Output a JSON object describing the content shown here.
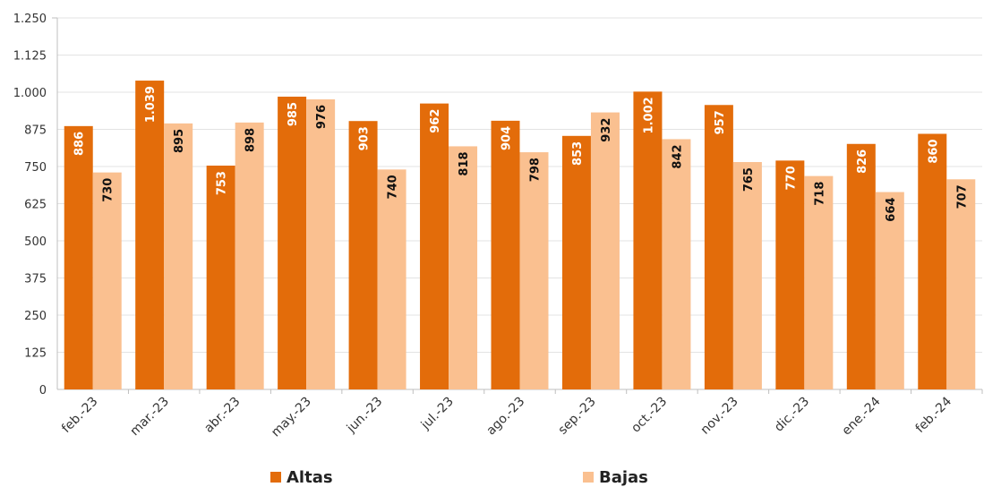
{
  "colors": {
    "altas": "#E36C0A",
    "bajas": "#FAC090"
  },
  "chart_data": {
    "type": "bar",
    "categories": [
      "feb.-23",
      "mar.-23",
      "abr.-23",
      "may.-23",
      "jun.-23",
      "jul.-23",
      "ago.-23",
      "sep.-23",
      "oct.-23",
      "nov.-23",
      "dic.-23",
      "ene.-24",
      "feb.-24"
    ],
    "series": [
      {
        "name": "Altas",
        "values": [
          886,
          1039,
          753,
          985,
          903,
          962,
          904,
          853,
          1002,
          957,
          770,
          826,
          860
        ],
        "labels": [
          "886",
          "1.039",
          "753",
          "985",
          "903",
          "962",
          "904",
          "853",
          "1.002",
          "957",
          "770",
          "826",
          "860"
        ]
      },
      {
        "name": "Bajas",
        "values": [
          730,
          895,
          898,
          976,
          740,
          818,
          798,
          932,
          842,
          765,
          718,
          664,
          707
        ],
        "labels": [
          "730",
          "895",
          "898",
          "976",
          "740",
          "818",
          "798",
          "932",
          "842",
          "765",
          "718",
          "664",
          "707"
        ]
      }
    ],
    "ylim": [
      0,
      1250
    ],
    "yticks": [
      0,
      125,
      250,
      375,
      500,
      625,
      750,
      875,
      1000,
      1125,
      1250
    ],
    "ytick_labels": [
      "0",
      "125",
      "250",
      "375",
      "500",
      "625",
      "750",
      "875",
      "1.000",
      "1.125",
      "1.250"
    ],
    "grid": true,
    "legend_position": "bottom"
  }
}
